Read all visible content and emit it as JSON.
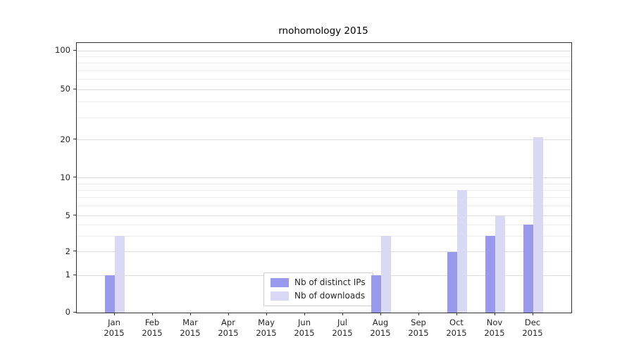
{
  "chart_data": {
    "type": "bar",
    "title": "rnohomology 2015",
    "categories": [
      "Jan 2015",
      "Feb 2015",
      "Mar 2015",
      "Apr 2015",
      "May 2015",
      "Jun 2015",
      "Jul 2015",
      "Aug 2015",
      "Sep 2015",
      "Oct 2015",
      "Nov 2015",
      "Dec 2015"
    ],
    "series": [
      {
        "name": "Nb of distinct IPs",
        "color": "#9999ee",
        "values": [
          1,
          0,
          0,
          0,
          0,
          0,
          0,
          1,
          0,
          2,
          3,
          4
        ]
      },
      {
        "name": "Nb of downloads",
        "color": "#d9d9f6",
        "values": [
          3,
          0,
          0,
          0,
          0,
          0,
          0,
          3,
          0,
          8,
          5,
          21
        ]
      }
    ],
    "yticks": [
      0,
      1,
      2,
      5,
      10,
      20,
      50,
      100
    ],
    "minor_gridlines": [
      3,
      4,
      6,
      7,
      8,
      9,
      30,
      40,
      60,
      70,
      80,
      90
    ],
    "yscale": "symlog",
    "ylim": [
      0,
      110
    ],
    "grid": "horizontal",
    "legend_position": "lower-center",
    "xlabel": "",
    "ylabel": ""
  }
}
